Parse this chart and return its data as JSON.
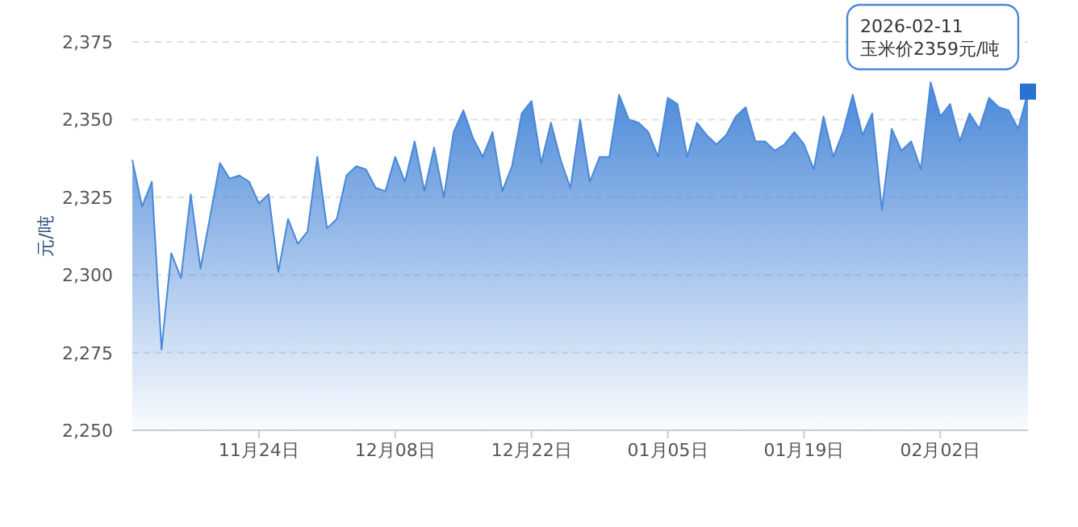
{
  "chart_data": {
    "type": "area",
    "ylabel": "元/吨",
    "x": [
      "2025-11-11",
      "2025-11-12",
      "2025-11-13",
      "2025-11-14",
      "2025-11-15",
      "2025-11-16",
      "2025-11-17",
      "2025-11-18",
      "2025-11-19",
      "2025-11-20",
      "2025-11-21",
      "2025-11-22",
      "2025-11-23",
      "2025-11-24",
      "2025-11-25",
      "2025-11-26",
      "2025-11-27",
      "2025-11-28",
      "2025-11-29",
      "2025-11-30",
      "2025-12-01",
      "2025-12-02",
      "2025-12-03",
      "2025-12-04",
      "2025-12-05",
      "2025-12-06",
      "2025-12-07",
      "2025-12-08",
      "2025-12-09",
      "2025-12-10",
      "2025-12-11",
      "2025-12-12",
      "2025-12-13",
      "2025-12-14",
      "2025-12-15",
      "2025-12-16",
      "2025-12-17",
      "2025-12-18",
      "2025-12-19",
      "2025-12-20",
      "2025-12-21",
      "2025-12-22",
      "2025-12-23",
      "2025-12-24",
      "2025-12-25",
      "2025-12-26",
      "2025-12-27",
      "2025-12-28",
      "2025-12-29",
      "2025-12-30",
      "2025-12-31",
      "2026-01-01",
      "2026-01-02",
      "2026-01-03",
      "2026-01-04",
      "2026-01-05",
      "2026-01-06",
      "2026-01-07",
      "2026-01-08",
      "2026-01-09",
      "2026-01-10",
      "2026-01-11",
      "2026-01-12",
      "2026-01-13",
      "2026-01-14",
      "2026-01-15",
      "2026-01-16",
      "2026-01-17",
      "2026-01-18",
      "2026-01-19",
      "2026-01-20",
      "2026-01-21",
      "2026-01-22",
      "2026-01-23",
      "2026-01-24",
      "2026-01-25",
      "2026-01-26",
      "2026-01-27",
      "2026-01-28",
      "2026-01-29",
      "2026-01-30",
      "2026-01-31",
      "2026-02-01",
      "2026-02-02",
      "2026-02-03",
      "2026-02-04",
      "2026-02-05",
      "2026-02-06",
      "2026-02-07",
      "2026-02-08",
      "2026-02-09",
      "2026-02-10",
      "2026-02-11"
    ],
    "series": [
      {
        "color": "#4a88d8",
        "values": [
          2337,
          2322,
          2330,
          2276,
          2307,
          2299,
          2326,
          2302,
          2319,
          2336,
          2331,
          2332,
          2330,
          2323,
          2326,
          2301,
          2318,
          2310,
          2314,
          2338,
          2315,
          2318,
          2332,
          2335,
          2334,
          2328,
          2327,
          2338,
          2330,
          2343,
          2327,
          2341,
          2325,
          2346,
          2353,
          2344,
          2338,
          2346,
          2327,
          2335,
          2352,
          2356,
          2336,
          2349,
          2337,
          2328,
          2350,
          2330,
          2338,
          2338,
          2358,
          2350,
          2349,
          2346,
          2338,
          2357,
          2355,
          2338,
          2349,
          2345,
          2342,
          2345,
          2351,
          2354,
          2343,
          2343,
          2340,
          2342,
          2346,
          2342,
          2334,
          2351,
          2338,
          2346,
          2358,
          2345,
          2352,
          2321,
          2347,
          2340,
          2343,
          2334,
          2362,
          2351,
          2355,
          2343,
          2352,
          2347,
          2357,
          2354,
          2353,
          2347,
          2359
        ]
      }
    ],
    "xlim": [
      "2025-11-11",
      "2026-02-11"
    ],
    "xticks": [
      {
        "value": "2025-11-24",
        "label": "11月24日"
      },
      {
        "value": "2025-12-08",
        "label": "12月08日"
      },
      {
        "value": "2025-12-22",
        "label": "12月22日"
      },
      {
        "value": "2026-01-05",
        "label": "01月05日"
      },
      {
        "value": "2026-01-19",
        "label": "01月19日"
      },
      {
        "value": "2026-02-02",
        "label": "02月02日"
      }
    ],
    "ylim": [
      2250,
      2375
    ],
    "yticks": [
      {
        "value": 2250,
        "label": "2,250"
      },
      {
        "value": 2275,
        "label": "2,275"
      },
      {
        "value": 2300,
        "label": "2,300"
      },
      {
        "value": 2325,
        "label": "2,325"
      },
      {
        "value": 2350,
        "label": "2,350"
      },
      {
        "value": 2375,
        "label": "2,375"
      }
    ],
    "grid": "y",
    "marker": "none",
    "line_style": "solid",
    "annotations": [
      {
        "text": "2026-02-11\n玉米价2359元/吨",
        "x": "2026-02-11",
        "y": 2359
      }
    ]
  }
}
